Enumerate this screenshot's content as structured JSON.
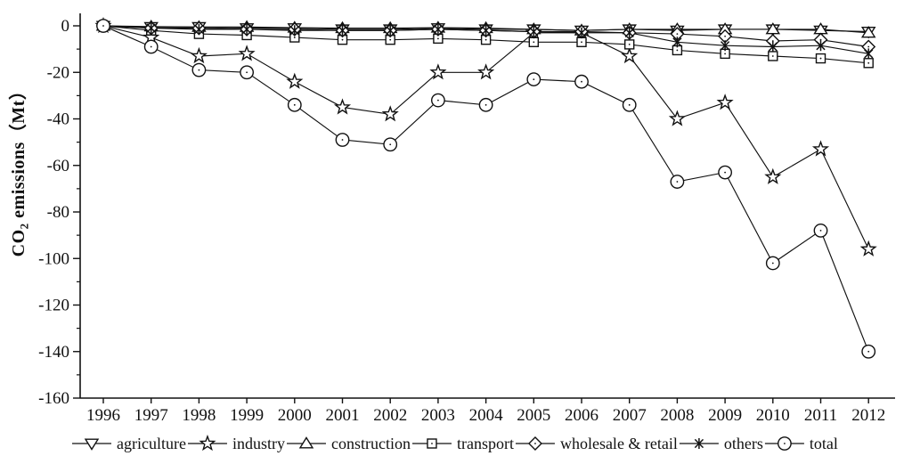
{
  "chart_data": {
    "type": "line",
    "title": "",
    "xlabel": "",
    "ylabel": {
      "prefix": "CO",
      "subscript": "2",
      "suffix": " emissions（Mt）"
    },
    "x_tick_labels": [
      "1996",
      "1997",
      "1998",
      "1999",
      "2000",
      "2001",
      "2002",
      "2003",
      "2004",
      "2005",
      "2006",
      "2007",
      "2008",
      "2009",
      "2010",
      "2011",
      "2012"
    ],
    "ylim": [
      -160,
      5
    ],
    "y_major_ticks": [
      0,
      -20,
      -40,
      -60,
      -80,
      -100,
      -120,
      -140,
      -160
    ],
    "y_minor_ticks": [
      -10,
      -30,
      -50,
      -70,
      -90,
      -110,
      -130,
      -150
    ],
    "grid": false,
    "legend_position": "bottom",
    "line_color": "#111111",
    "background_color": "#ffffff",
    "series": [
      {
        "name": "agriculture",
        "marker": "triangle-down",
        "values": [
          0,
          -0.5,
          -0.5,
          -1,
          -1,
          -1.5,
          -1.5,
          -1,
          -1.5,
          -1.5,
          -2,
          -1.5,
          -2,
          -1.5,
          -1.5,
          -2,
          -2.5
        ]
      },
      {
        "name": "industry",
        "marker": "star",
        "values": [
          0,
          -5,
          -13,
          -12,
          -24,
          -35,
          -38,
          -20,
          -20,
          -3,
          -3,
          -13,
          -40,
          -33,
          -65,
          -53,
          -96
        ]
      },
      {
        "name": "construction",
        "marker": "triangle-up",
        "values": [
          0,
          -0.3,
          -0.5,
          -0.5,
          -0.8,
          -1,
          -1,
          -0.8,
          -1,
          -1.5,
          -2,
          -1.5,
          -1.5,
          -1.5,
          -1.5,
          -1.5,
          -3
        ]
      },
      {
        "name": "transport",
        "marker": "square",
        "values": [
          0,
          -2,
          -3.5,
          -4,
          -5,
          -6,
          -6,
          -5.5,
          -6,
          -7,
          -7,
          -8,
          -10.5,
          -12,
          -13,
          -14,
          -16
        ]
      },
      {
        "name": "wholesale & retail",
        "marker": "diamond",
        "values": [
          0,
          -1,
          -1,
          -1.5,
          -1.5,
          -2,
          -2,
          -1.5,
          -2,
          -2.5,
          -2.5,
          -3,
          -3.5,
          -4.5,
          -6.5,
          -6,
          -9
        ]
      },
      {
        "name": "others",
        "marker": "asterisk",
        "values": [
          0,
          -1,
          -1.5,
          -1.5,
          -2,
          -2,
          -2,
          -1.5,
          -2,
          -2.5,
          -3,
          -3,
          -7,
          -8.5,
          -9,
          -8.5,
          -12
        ]
      },
      {
        "name": "total",
        "marker": "circle",
        "values": [
          0,
          -9,
          -19,
          -20,
          -34,
          -49,
          -51,
          -32,
          -34,
          -23,
          -24,
          -34,
          -67,
          -63,
          -102,
          -88,
          -140
        ]
      }
    ]
  }
}
